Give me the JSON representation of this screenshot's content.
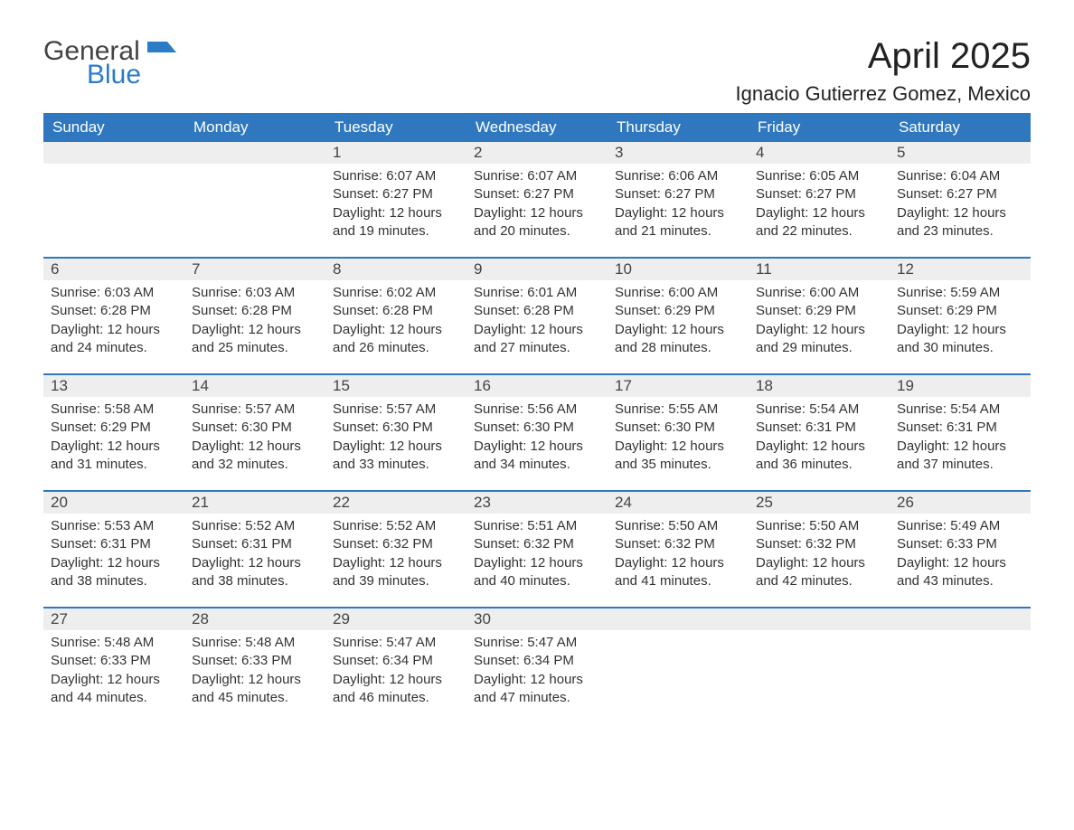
{
  "brand": {
    "part1": "General",
    "part2": "Blue",
    "accent": "#2a7cc7",
    "text_color": "#444"
  },
  "title": "April 2025",
  "location": "Ignacio Gutierrez Gomez, Mexico",
  "colors": {
    "header_bg": "#2f78bf",
    "header_text": "#ffffff",
    "daynum_bg": "#eeeeee",
    "row_border": "#2f78bf",
    "body_text": "#333333"
  },
  "fonts": {
    "title_size_pt": 30,
    "location_size_pt": 16,
    "header_size_pt": 13,
    "cell_size_pt": 11
  },
  "day_headers": [
    "Sunday",
    "Monday",
    "Tuesday",
    "Wednesday",
    "Thursday",
    "Friday",
    "Saturday"
  ],
  "weeks": [
    [
      null,
      null,
      {
        "n": 1,
        "sunrise": "6:07 AM",
        "sunset": "6:27 PM",
        "daylight": "12 hours and 19 minutes."
      },
      {
        "n": 2,
        "sunrise": "6:07 AM",
        "sunset": "6:27 PM",
        "daylight": "12 hours and 20 minutes."
      },
      {
        "n": 3,
        "sunrise": "6:06 AM",
        "sunset": "6:27 PM",
        "daylight": "12 hours and 21 minutes."
      },
      {
        "n": 4,
        "sunrise": "6:05 AM",
        "sunset": "6:27 PM",
        "daylight": "12 hours and 22 minutes."
      },
      {
        "n": 5,
        "sunrise": "6:04 AM",
        "sunset": "6:27 PM",
        "daylight": "12 hours and 23 minutes."
      }
    ],
    [
      {
        "n": 6,
        "sunrise": "6:03 AM",
        "sunset": "6:28 PM",
        "daylight": "12 hours and 24 minutes."
      },
      {
        "n": 7,
        "sunrise": "6:03 AM",
        "sunset": "6:28 PM",
        "daylight": "12 hours and 25 minutes."
      },
      {
        "n": 8,
        "sunrise": "6:02 AM",
        "sunset": "6:28 PM",
        "daylight": "12 hours and 26 minutes."
      },
      {
        "n": 9,
        "sunrise": "6:01 AM",
        "sunset": "6:28 PM",
        "daylight": "12 hours and 27 minutes."
      },
      {
        "n": 10,
        "sunrise": "6:00 AM",
        "sunset": "6:29 PM",
        "daylight": "12 hours and 28 minutes."
      },
      {
        "n": 11,
        "sunrise": "6:00 AM",
        "sunset": "6:29 PM",
        "daylight": "12 hours and 29 minutes."
      },
      {
        "n": 12,
        "sunrise": "5:59 AM",
        "sunset": "6:29 PM",
        "daylight": "12 hours and 30 minutes."
      }
    ],
    [
      {
        "n": 13,
        "sunrise": "5:58 AM",
        "sunset": "6:29 PM",
        "daylight": "12 hours and 31 minutes."
      },
      {
        "n": 14,
        "sunrise": "5:57 AM",
        "sunset": "6:30 PM",
        "daylight": "12 hours and 32 minutes."
      },
      {
        "n": 15,
        "sunrise": "5:57 AM",
        "sunset": "6:30 PM",
        "daylight": "12 hours and 33 minutes."
      },
      {
        "n": 16,
        "sunrise": "5:56 AM",
        "sunset": "6:30 PM",
        "daylight": "12 hours and 34 minutes."
      },
      {
        "n": 17,
        "sunrise": "5:55 AM",
        "sunset": "6:30 PM",
        "daylight": "12 hours and 35 minutes."
      },
      {
        "n": 18,
        "sunrise": "5:54 AM",
        "sunset": "6:31 PM",
        "daylight": "12 hours and 36 minutes."
      },
      {
        "n": 19,
        "sunrise": "5:54 AM",
        "sunset": "6:31 PM",
        "daylight": "12 hours and 37 minutes."
      }
    ],
    [
      {
        "n": 20,
        "sunrise": "5:53 AM",
        "sunset": "6:31 PM",
        "daylight": "12 hours and 38 minutes."
      },
      {
        "n": 21,
        "sunrise": "5:52 AM",
        "sunset": "6:31 PM",
        "daylight": "12 hours and 38 minutes."
      },
      {
        "n": 22,
        "sunrise": "5:52 AM",
        "sunset": "6:32 PM",
        "daylight": "12 hours and 39 minutes."
      },
      {
        "n": 23,
        "sunrise": "5:51 AM",
        "sunset": "6:32 PM",
        "daylight": "12 hours and 40 minutes."
      },
      {
        "n": 24,
        "sunrise": "5:50 AM",
        "sunset": "6:32 PM",
        "daylight": "12 hours and 41 minutes."
      },
      {
        "n": 25,
        "sunrise": "5:50 AM",
        "sunset": "6:32 PM",
        "daylight": "12 hours and 42 minutes."
      },
      {
        "n": 26,
        "sunrise": "5:49 AM",
        "sunset": "6:33 PM",
        "daylight": "12 hours and 43 minutes."
      }
    ],
    [
      {
        "n": 27,
        "sunrise": "5:48 AM",
        "sunset": "6:33 PM",
        "daylight": "12 hours and 44 minutes."
      },
      {
        "n": 28,
        "sunrise": "5:48 AM",
        "sunset": "6:33 PM",
        "daylight": "12 hours and 45 minutes."
      },
      {
        "n": 29,
        "sunrise": "5:47 AM",
        "sunset": "6:34 PM",
        "daylight": "12 hours and 46 minutes."
      },
      {
        "n": 30,
        "sunrise": "5:47 AM",
        "sunset": "6:34 PM",
        "daylight": "12 hours and 47 minutes."
      },
      null,
      null,
      null
    ]
  ],
  "labels": {
    "sunrise": "Sunrise: ",
    "sunset": "Sunset: ",
    "daylight": "Daylight: "
  }
}
